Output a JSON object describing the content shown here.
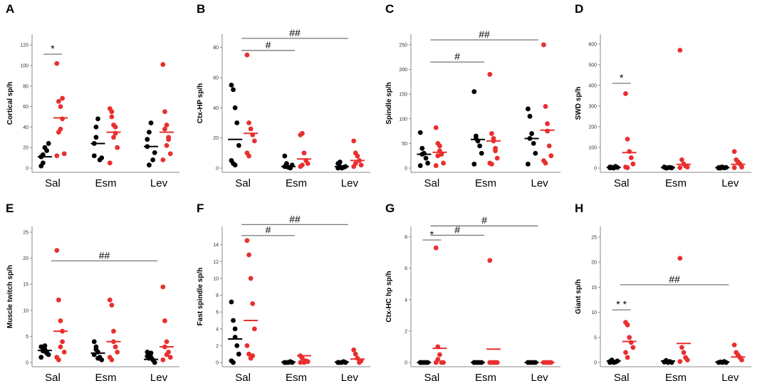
{
  "chart_data": [
    {
      "type": "scatter",
      "panel_letter": "A",
      "ylabel": "Cortical sp/h",
      "ylim": [
        0,
        125
      ],
      "yticks": [
        0,
        20,
        40,
        60,
        80,
        100,
        120
      ],
      "categories": [
        "Sal",
        "Esm",
        "Lev"
      ],
      "series": [
        {
          "name": "black",
          "color": "#000000",
          "points": [
            [
              11,
              13,
              20,
              17,
              24,
              2,
              5
            ],
            [
              24,
              40,
              48,
              8,
              10,
              12,
              30
            ],
            [
              21,
              35,
              44,
              8,
              15,
              28,
              3
            ]
          ],
          "means": [
            11,
            24,
            21
          ]
        },
        {
          "name": "red",
          "color": "#e8302f",
          "points": [
            [
              102,
              65,
              60,
              48,
              14,
              12,
              35,
              38,
              68
            ],
            [
              58,
              50,
              42,
              34,
              20,
              5,
              55,
              30,
              40
            ],
            [
              101,
              55,
              42,
              28,
              14,
              8,
              38,
              22,
              30
            ]
          ],
          "means": [
            49,
            35,
            35
          ]
        }
      ],
      "annotations": [
        {
          "label": "*",
          "from": 0,
          "to": 0,
          "y": 111
        }
      ]
    },
    {
      "type": "scatter",
      "panel_letter": "B",
      "ylabel": "Ctx-HP sp/h",
      "ylim": [
        0,
        85
      ],
      "yticks": [
        0,
        20,
        40,
        60,
        80
      ],
      "categories": [
        "Sal",
        "Esm",
        "Lev"
      ],
      "series": [
        {
          "name": "black",
          "color": "#000000",
          "points": [
            [
              55,
              52,
              40,
              30,
              15,
              5,
              3,
              2
            ],
            [
              8,
              1,
              0.5,
              0,
              2,
              1,
              3
            ],
            [
              3,
              1,
              0,
              0.5,
              1,
              0,
              4
            ]
          ],
          "means": [
            19,
            1,
            1
          ]
        },
        {
          "name": "red",
          "color": "#e8302f",
          "points": [
            [
              75,
              30,
              26,
              22,
              18,
              10,
              8
            ],
            [
              22,
              23,
              10,
              5,
              3,
              1,
              2
            ],
            [
              18,
              10,
              8,
              5,
              2,
              1,
              3
            ]
          ],
          "means": [
            23,
            6,
            5
          ]
        }
      ],
      "annotations": [
        {
          "label": "#",
          "from": 0,
          "to": 1,
          "y": 78
        },
        {
          "label": "##",
          "from": 0,
          "to": 2,
          "y": 86
        }
      ]
    },
    {
      "type": "scatter",
      "panel_letter": "C",
      "ylabel": "Spindle  sp/h",
      "ylim": [
        0,
        260
      ],
      "yticks": [
        0,
        50,
        100,
        150,
        200,
        250
      ],
      "categories": [
        "Sal",
        "Esm",
        "Lev"
      ],
      "series": [
        {
          "name": "black",
          "color": "#000000",
          "points": [
            [
              72,
              40,
              30,
              20,
              10,
              5,
              28
            ],
            [
              155,
              65,
              55,
              45,
              30,
              8,
              60
            ],
            [
              120,
              105,
              70,
              50,
              30,
              8,
              60
            ]
          ],
          "means": [
            28,
            58,
            60
          ]
        },
        {
          "name": "red",
          "color": "#e8302f",
          "points": [
            [
              82,
              50,
              35,
              28,
              10,
              5,
              25,
              45
            ],
            [
              190,
              70,
              55,
              35,
              20,
              10,
              8,
              60,
              40
            ],
            [
              250,
              125,
              90,
              45,
              25,
              15,
              10,
              75
            ]
          ],
          "means": [
            32,
            55,
            77
          ]
        }
      ],
      "annotations": [
        {
          "label": "#",
          "from": 0,
          "to": 1,
          "y": 215
        },
        {
          "label": "##",
          "from": 0,
          "to": 2,
          "y": 260
        }
      ]
    },
    {
      "type": "scatter",
      "panel_letter": "D",
      "ylabel": "SWD sp/h",
      "ylim": [
        0,
        620
      ],
      "yticks": [
        0,
        100,
        200,
        300,
        400,
        500,
        600
      ],
      "categories": [
        "Sal",
        "Esm",
        "Lev"
      ],
      "series": [
        {
          "name": "black",
          "color": "#000000",
          "points": [
            [
              5,
              2,
              0,
              8,
              3,
              1,
              4
            ],
            [
              5,
              0,
              2,
              3,
              1,
              4,
              0
            ],
            [
              2,
              0,
              5,
              1,
              3,
              0,
              4
            ]
          ],
          "means": [
            3,
            2,
            2
          ]
        },
        {
          "name": "red",
          "color": "#e8302f",
          "points": [
            [
              360,
              140,
              80,
              50,
              20,
              5,
              2
            ],
            [
              570,
              40,
              20,
              10,
              5,
              2
            ],
            [
              80,
              40,
              30,
              20,
              5,
              2
            ]
          ],
          "means": [
            75,
            18,
            18
          ]
        }
      ],
      "annotations": [
        {
          "label": "*",
          "from": 0,
          "to": 0,
          "y": 410
        }
      ]
    },
    {
      "type": "scatter",
      "panel_letter": "E",
      "ylabel": "Muscle twitch  sp/h",
      "ylim": [
        0,
        25
      ],
      "yticks": [
        0,
        5,
        10,
        15,
        20,
        25
      ],
      "categories": [
        "Sal",
        "Esm",
        "Lev"
      ],
      "series": [
        {
          "name": "black",
          "color": "#000000",
          "points": [
            [
              3,
              2.8,
              2.5,
              2,
              1.5,
              1,
              2.2,
              3.2,
              1.8
            ],
            [
              4,
              3,
              2,
              1,
              0.5,
              1.5,
              2.5,
              0.8
            ],
            [
              2,
              1.5,
              1,
              0.5,
              0,
              1.2,
              0.8,
              1.8
            ]
          ],
          "means": [
            2.3,
            1.8,
            0.6
          ]
        },
        {
          "name": "red",
          "color": "#e8302f",
          "points": [
            [
              21.5,
              12,
              8,
              4,
              2,
              1,
              0.5,
              3,
              6
            ],
            [
              12,
              11,
              6,
              3,
              2,
              1,
              0.5,
              4
            ],
            [
              14.5,
              8,
              4,
              2,
              1,
              0.5,
              3,
              1.5
            ]
          ],
          "means": [
            6,
            4,
            3
          ]
        }
      ],
      "annotations": [
        {
          "label": "##",
          "from": 0,
          "to": 2,
          "y": 19.5
        }
      ]
    },
    {
      "type": "scatter",
      "panel_letter": "F",
      "ylabel": "Fast spindle  sp/h",
      "ylim": [
        0,
        15.5
      ],
      "yticks": [
        0,
        2,
        4,
        6,
        8,
        10,
        12,
        14
      ],
      "categories": [
        "Sal",
        "Esm",
        "Lev"
      ],
      "series": [
        {
          "name": "black",
          "color": "#000000",
          "points": [
            [
              7.2,
              5,
              3,
              2,
              1,
              0.2,
              0,
              4
            ],
            [
              0,
              0,
              0,
              0.1,
              0,
              0
            ],
            [
              0,
              0,
              0,
              0.1,
              0,
              0
            ]
          ],
          "means": [
            2.8,
            0.05,
            0.05
          ]
        },
        {
          "name": "red",
          "color": "#e8302f",
          "points": [
            [
              14.5,
              12.8,
              10,
              7,
              4,
              2,
              1,
              0.5,
              0.8
            ],
            [
              0.8,
              0.5,
              0,
              0.2,
              0.1,
              0
            ],
            [
              1.5,
              1,
              0.5,
              0,
              0.2
            ]
          ],
          "means": [
            5,
            0.8,
            0.4
          ]
        }
      ],
      "annotations": [
        {
          "label": "#",
          "from": 0,
          "to": 1,
          "y": 15.1
        },
        {
          "label": "##",
          "from": 0,
          "to": 2,
          "y": 16.4
        }
      ]
    },
    {
      "type": "scatter",
      "panel_letter": "G",
      "ylabel": "Ctx-HC  hp  sp/h",
      "ylim": [
        0,
        8.3
      ],
      "yticks": [
        0,
        2,
        4,
        6,
        8
      ],
      "categories": [
        "Sal",
        "Esm",
        "Lev"
      ],
      "series": [
        {
          "name": "black",
          "color": "#000000",
          "points": [
            [
              0,
              0,
              0,
              0,
              0,
              0
            ],
            [
              0,
              0,
              0,
              0,
              0,
              0
            ],
            [
              0,
              0,
              0,
              0,
              0,
              0
            ]
          ],
          "means": [
            0,
            0,
            0
          ]
        },
        {
          "name": "red",
          "color": "#e8302f",
          "points": [
            [
              7.3,
              1,
              0.5,
              0,
              0,
              0,
              0.2
            ],
            [
              6.5,
              0,
              0,
              0,
              0,
              0
            ],
            [
              0,
              0,
              0,
              0,
              0
            ]
          ],
          "means": [
            0.9,
            0.85,
            0
          ]
        }
      ],
      "annotations": [
        {
          "label": "*",
          "from": 0,
          "to": 0,
          "y": 7.8
        },
        {
          "label": "#",
          "from": 0,
          "to": 1,
          "y": 8.1
        },
        {
          "label": "#",
          "from": 0,
          "to": 2,
          "y": 8.7
        }
      ]
    },
    {
      "type": "scatter",
      "panel_letter": "H",
      "ylabel": "Giant sp/h",
      "ylim": [
        0,
        26
      ],
      "yticks": [
        0,
        5,
        10,
        15,
        20,
        25
      ],
      "categories": [
        "Sal",
        "Esm",
        "Lev"
      ],
      "series": [
        {
          "name": "black",
          "color": "#000000",
          "points": [
            [
              0.2,
              0.5,
              0,
              0.1,
              0.3,
              0
            ],
            [
              0.1,
              0.4,
              0,
              0.2,
              0
            ],
            [
              0,
              0.1,
              0,
              0.2,
              0
            ]
          ],
          "means": [
            0.3,
            0.3,
            0.1
          ]
        },
        {
          "name": "red",
          "color": "#e8302f",
          "points": [
            [
              8,
              7.5,
              5,
              4,
              3,
              2,
              1
            ],
            [
              20.8,
              3,
              2,
              1,
              0.5,
              0.2
            ],
            [
              3.5,
              2,
              1.5,
              1,
              0.5
            ]
          ],
          "means": [
            4.2,
            3.8,
            1.1
          ]
        }
      ],
      "annotations": [
        {
          "label": "* *",
          "from": 0,
          "to": 0,
          "y": 10.5
        },
        {
          "label": "##",
          "from": 0,
          "to": 2,
          "y": 15.5
        }
      ]
    }
  ]
}
